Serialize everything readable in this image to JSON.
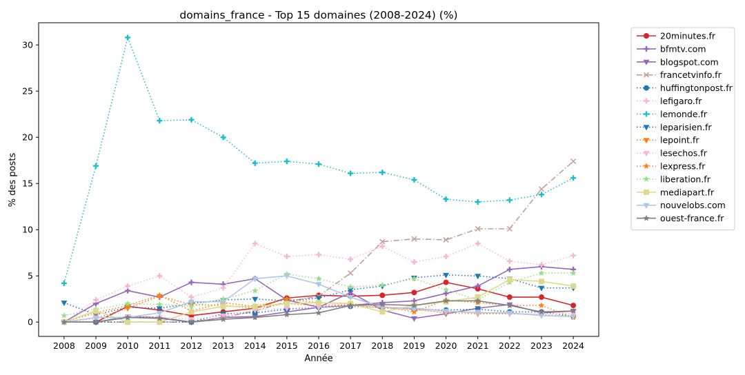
{
  "chart_data": {
    "type": "line",
    "title": "domains_france - Top 15 domaines (2008-2024) (%)",
    "xlabel": "Année",
    "ylabel": "% des posts",
    "x": [
      2008,
      2009,
      2010,
      2011,
      2012,
      2013,
      2014,
      2015,
      2016,
      2017,
      2018,
      2019,
      2020,
      2021,
      2022,
      2023,
      2024
    ],
    "xlim": [
      2007.2,
      2024.8
    ],
    "ylim": [
      -1.55,
      32.4
    ],
    "yticks": [
      0,
      5,
      10,
      15,
      20,
      25,
      30
    ],
    "grid": false,
    "legend_position": "outside-right",
    "series": [
      {
        "name": "20minutes.fr",
        "color": "#d62728",
        "dash": "solid",
        "marker": "circle",
        "values": [
          0,
          0,
          1.7,
          1.3,
          0.7,
          1.1,
          1.5,
          2.6,
          2.9,
          2.8,
          2.9,
          3.2,
          4.3,
          3.6,
          2.7,
          2.7,
          1.8
        ]
      },
      {
        "name": "bfmtv.com",
        "color": "#9467bd",
        "dash": "solid",
        "marker": "plus",
        "values": [
          0,
          2.0,
          3.4,
          2.7,
          4.3,
          4.1,
          4.7,
          2.4,
          1.6,
          1.8,
          2.1,
          2.3,
          3.1,
          3.9,
          5.7,
          6.0,
          5.7
        ]
      },
      {
        "name": "blogspot.com",
        "color": "#9467bd",
        "dash": "solid",
        "marker": "triangle-down",
        "values": [
          0,
          0,
          0.6,
          0.5,
          0,
          0.5,
          0.6,
          1.1,
          1.6,
          3.2,
          1.3,
          0.4,
          0.9,
          1.5,
          1.9,
          1.0,
          1.2
        ]
      },
      {
        "name": "francetvinfo.fr",
        "color": "#c49c94",
        "dash": "dashdot",
        "marker": "x",
        "values": [
          0,
          0,
          0,
          0,
          0,
          0.5,
          1.2,
          2.2,
          2.8,
          5.3,
          8.7,
          9.0,
          8.9,
          10.1,
          10.1,
          14.4,
          17.4
        ]
      },
      {
        "name": "huffingtonpost.fr",
        "color": "#1f77b4",
        "dash": "dotted",
        "marker": "circle",
        "values": [
          0,
          0,
          0,
          0,
          0,
          0.9,
          1.0,
          1.4,
          1.6,
          1.7,
          1.6,
          1.4,
          1.3,
          1.4,
          1.1,
          1.1,
          0.6
        ]
      },
      {
        "name": "lefigaro.fr",
        "color": "#f7b6d2",
        "dash": "dotted",
        "marker": "plus",
        "values": [
          0,
          2.4,
          3.9,
          5.0,
          2.7,
          3.7,
          8.5,
          7.1,
          7.3,
          6.8,
          8.2,
          6.5,
          7.1,
          8.5,
          6.6,
          6.2,
          7.2
        ]
      },
      {
        "name": "lemonde.fr",
        "color": "#17becf",
        "dash": "dotted",
        "marker": "plus",
        "values": [
          4.2,
          16.9,
          30.8,
          21.8,
          21.9,
          20.0,
          17.2,
          17.4,
          17.1,
          16.1,
          16.2,
          15.4,
          13.3,
          13.0,
          13.2,
          13.8,
          15.6
        ]
      },
      {
        "name": "leparisien.fr",
        "color": "#1f77b4",
        "dash": "dotted",
        "marker": "triangle-down",
        "values": [
          2.1,
          0.8,
          1.6,
          1.5,
          2.0,
          2.4,
          2.5,
          2.3,
          2.6,
          3.5,
          3.9,
          4.8,
          5.1,
          5.0,
          4.7,
          3.7,
          3.7
        ]
      },
      {
        "name": "lepoint.fr",
        "color": "#ff7f0e",
        "dash": "dotted",
        "marker": "triangle-down",
        "values": [
          0,
          0.4,
          1.5,
          2.8,
          1.9,
          1.8,
          1.5,
          2.0,
          1.8,
          1.9,
          1.5,
          1.4,
          1.0,
          0.9,
          0.9,
          0.8,
          0.6
        ]
      },
      {
        "name": "lesechos.fr",
        "color": "#f7b6d2",
        "dash": "dotted",
        "marker": "triangle-down",
        "values": [
          0,
          0.4,
          0.6,
          0.5,
          0.3,
          0.7,
          1.3,
          1.5,
          1.6,
          1.8,
          1.6,
          1.3,
          1.1,
          1.1,
          0.9,
          0.9,
          0.9
        ]
      },
      {
        "name": "lexpress.fr",
        "color": "#ff7f0e",
        "dash": "dotted",
        "marker": "star",
        "values": [
          0,
          1.0,
          1.8,
          2.9,
          1.2,
          2.1,
          1.7,
          2.5,
          2.1,
          2.0,
          1.7,
          1.1,
          2.4,
          2.1,
          1.8,
          1.8,
          0.5
        ]
      },
      {
        "name": "liberation.fr",
        "color": "#98df8a",
        "dash": "dotted",
        "marker": "star",
        "values": [
          0.7,
          1.4,
          2.0,
          1.9,
          1.7,
          2.5,
          3.4,
          5.2,
          4.7,
          3.8,
          4.0,
          4.7,
          3.5,
          2.4,
          4.3,
          5.3,
          5.3
        ]
      },
      {
        "name": "mediapart.fr",
        "color": "#dbdb8d",
        "dash": "solid",
        "marker": "square",
        "values": [
          0,
          1.2,
          0,
          0,
          1.1,
          1.7,
          1.7,
          2.0,
          2.1,
          2.0,
          1.1,
          1.8,
          2.2,
          2.7,
          4.6,
          4.4,
          3.9
        ]
      },
      {
        "name": "nouvelobs.com",
        "color": "#aec7e8",
        "dash": "solid",
        "marker": "triangle-down",
        "values": [
          0,
          0.5,
          0.5,
          1.0,
          2.2,
          2.2,
          4.7,
          5.0,
          4.1,
          2.7,
          1.6,
          1.5,
          1.2,
          1.0,
          1.0,
          0.7,
          0.6
        ]
      },
      {
        "name": "ouest-france.fr",
        "color": "#7f7f7f",
        "dash": "solid",
        "marker": "star",
        "values": [
          0,
          0,
          0.5,
          0.4,
          0,
          0.3,
          0.5,
          0.8,
          1.0,
          1.8,
          1.9,
          1.8,
          2.3,
          2.3,
          1.8,
          1.1,
          1.2
        ]
      }
    ]
  }
}
